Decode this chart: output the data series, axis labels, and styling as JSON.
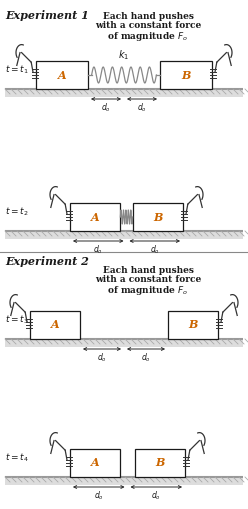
{
  "bg_color": "#ffffff",
  "line_color": "#2a2a2a",
  "box_color": "#ffffff",
  "box_edge": "#1a1a1a",
  "ground_top_color": "#bbbbbb",
  "ground_hatch_color": "#888888",
  "text_color": "#1a1a1a",
  "orange_color": "#cc6600",
  "title1": "Experiment 1",
  "title2": "Experiment 2",
  "label_A": "A",
  "label_B": "B",
  "t1": "$t=t_1$",
  "t2": "$t=t_2$",
  "t3": "$t=t_3$",
  "t4": "$t=t_4$",
  "force_text_line1": "Each hand pushes",
  "force_text_line2": "with a constant force",
  "force_text_line3": "of magnitude $F_o$",
  "k1_label": "$k_1$",
  "do_label": "$d_o$",
  "fig_width": 2.48,
  "fig_height": 5.09,
  "dpi": 100,
  "xlim": [
    0,
    248
  ],
  "ylim": [
    0,
    509
  ]
}
